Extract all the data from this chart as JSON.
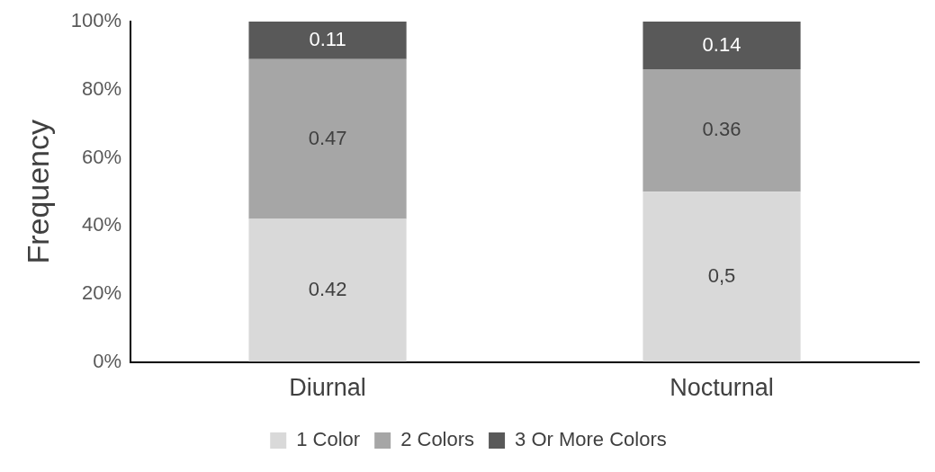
{
  "chart_data": {
    "type": "bar",
    "stacked": true,
    "ylabel": "Frequency",
    "categories": [
      "Diurnal",
      "Nocturnal"
    ],
    "series": [
      {
        "name": "1 Color",
        "color": "#d9d9d9",
        "values": [
          0.42,
          0.5
        ],
        "value_labels": [
          "0.42",
          "0,5"
        ]
      },
      {
        "name": "2 Colors",
        "color": "#a6a6a6",
        "values": [
          0.47,
          0.36
        ],
        "value_labels": [
          "0.47",
          "0.36"
        ]
      },
      {
        "name": "3 Or More Colors",
        "color": "#595959",
        "values": [
          0.11,
          0.14
        ],
        "value_labels": [
          "0.11",
          "0.14"
        ]
      }
    ],
    "ylim": [
      0,
      1
    ],
    "yticks": [
      {
        "value": 0,
        "label": "0%"
      },
      {
        "value": 0.2,
        "label": "20%"
      },
      {
        "value": 0.4,
        "label": "40%"
      },
      {
        "value": 0.6,
        "label": "60%"
      },
      {
        "value": 0.8,
        "label": "80%"
      },
      {
        "value": 1,
        "label": "100%"
      }
    ],
    "grid": false,
    "legend": "bottom"
  }
}
